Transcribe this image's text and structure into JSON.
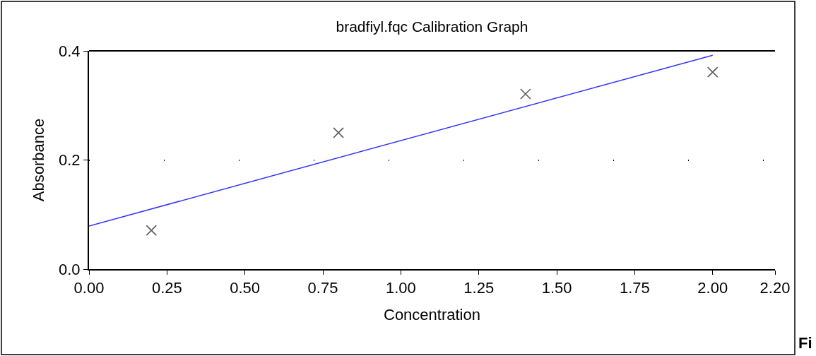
{
  "chart_data": {
    "type": "scatter",
    "title": "bradfiyl.fqc Calibration Graph",
    "xlabel": "Concentration",
    "ylabel": "Absorbance",
    "x": [
      0.2,
      0.8,
      1.4,
      2.0
    ],
    "series": [
      {
        "color": "#595959",
        "marker": "cross",
        "values": [
          0.071,
          0.25,
          0.321,
          0.361
        ]
      },
      {
        "type": "line",
        "color": "#3333ff",
        "marker": "none",
        "line_style": "solid",
        "x": [
          0,
          2.0
        ],
        "values": [
          0.079,
          0.392
        ]
      }
    ],
    "xlim": [
      0,
      2.2
    ],
    "ylim": [
      0,
      0.4
    ],
    "xticks": [
      {
        "value": 0,
        "label": "0.00"
      },
      {
        "value": 0.25,
        "label": "0.25"
      },
      {
        "value": 0.5,
        "label": "0.50"
      },
      {
        "value": 0.75,
        "label": "0.75"
      },
      {
        "value": 1.0,
        "label": "1.00"
      },
      {
        "value": 1.25,
        "label": "1.25"
      },
      {
        "value": 1.5,
        "label": "1.50"
      },
      {
        "value": 1.75,
        "label": "1.75"
      },
      {
        "value": 2.0,
        "label": "2.00"
      },
      {
        "value": 2.2,
        "label": "2.20"
      }
    ],
    "yticks": [
      {
        "value": 0,
        "label": "0.0"
      },
      {
        "value": 0.2,
        "label": "0.2"
      },
      {
        "value": 0.4,
        "label": "0.4"
      }
    ],
    "grid": "y",
    "annotations": [
      "Fi"
    ]
  }
}
